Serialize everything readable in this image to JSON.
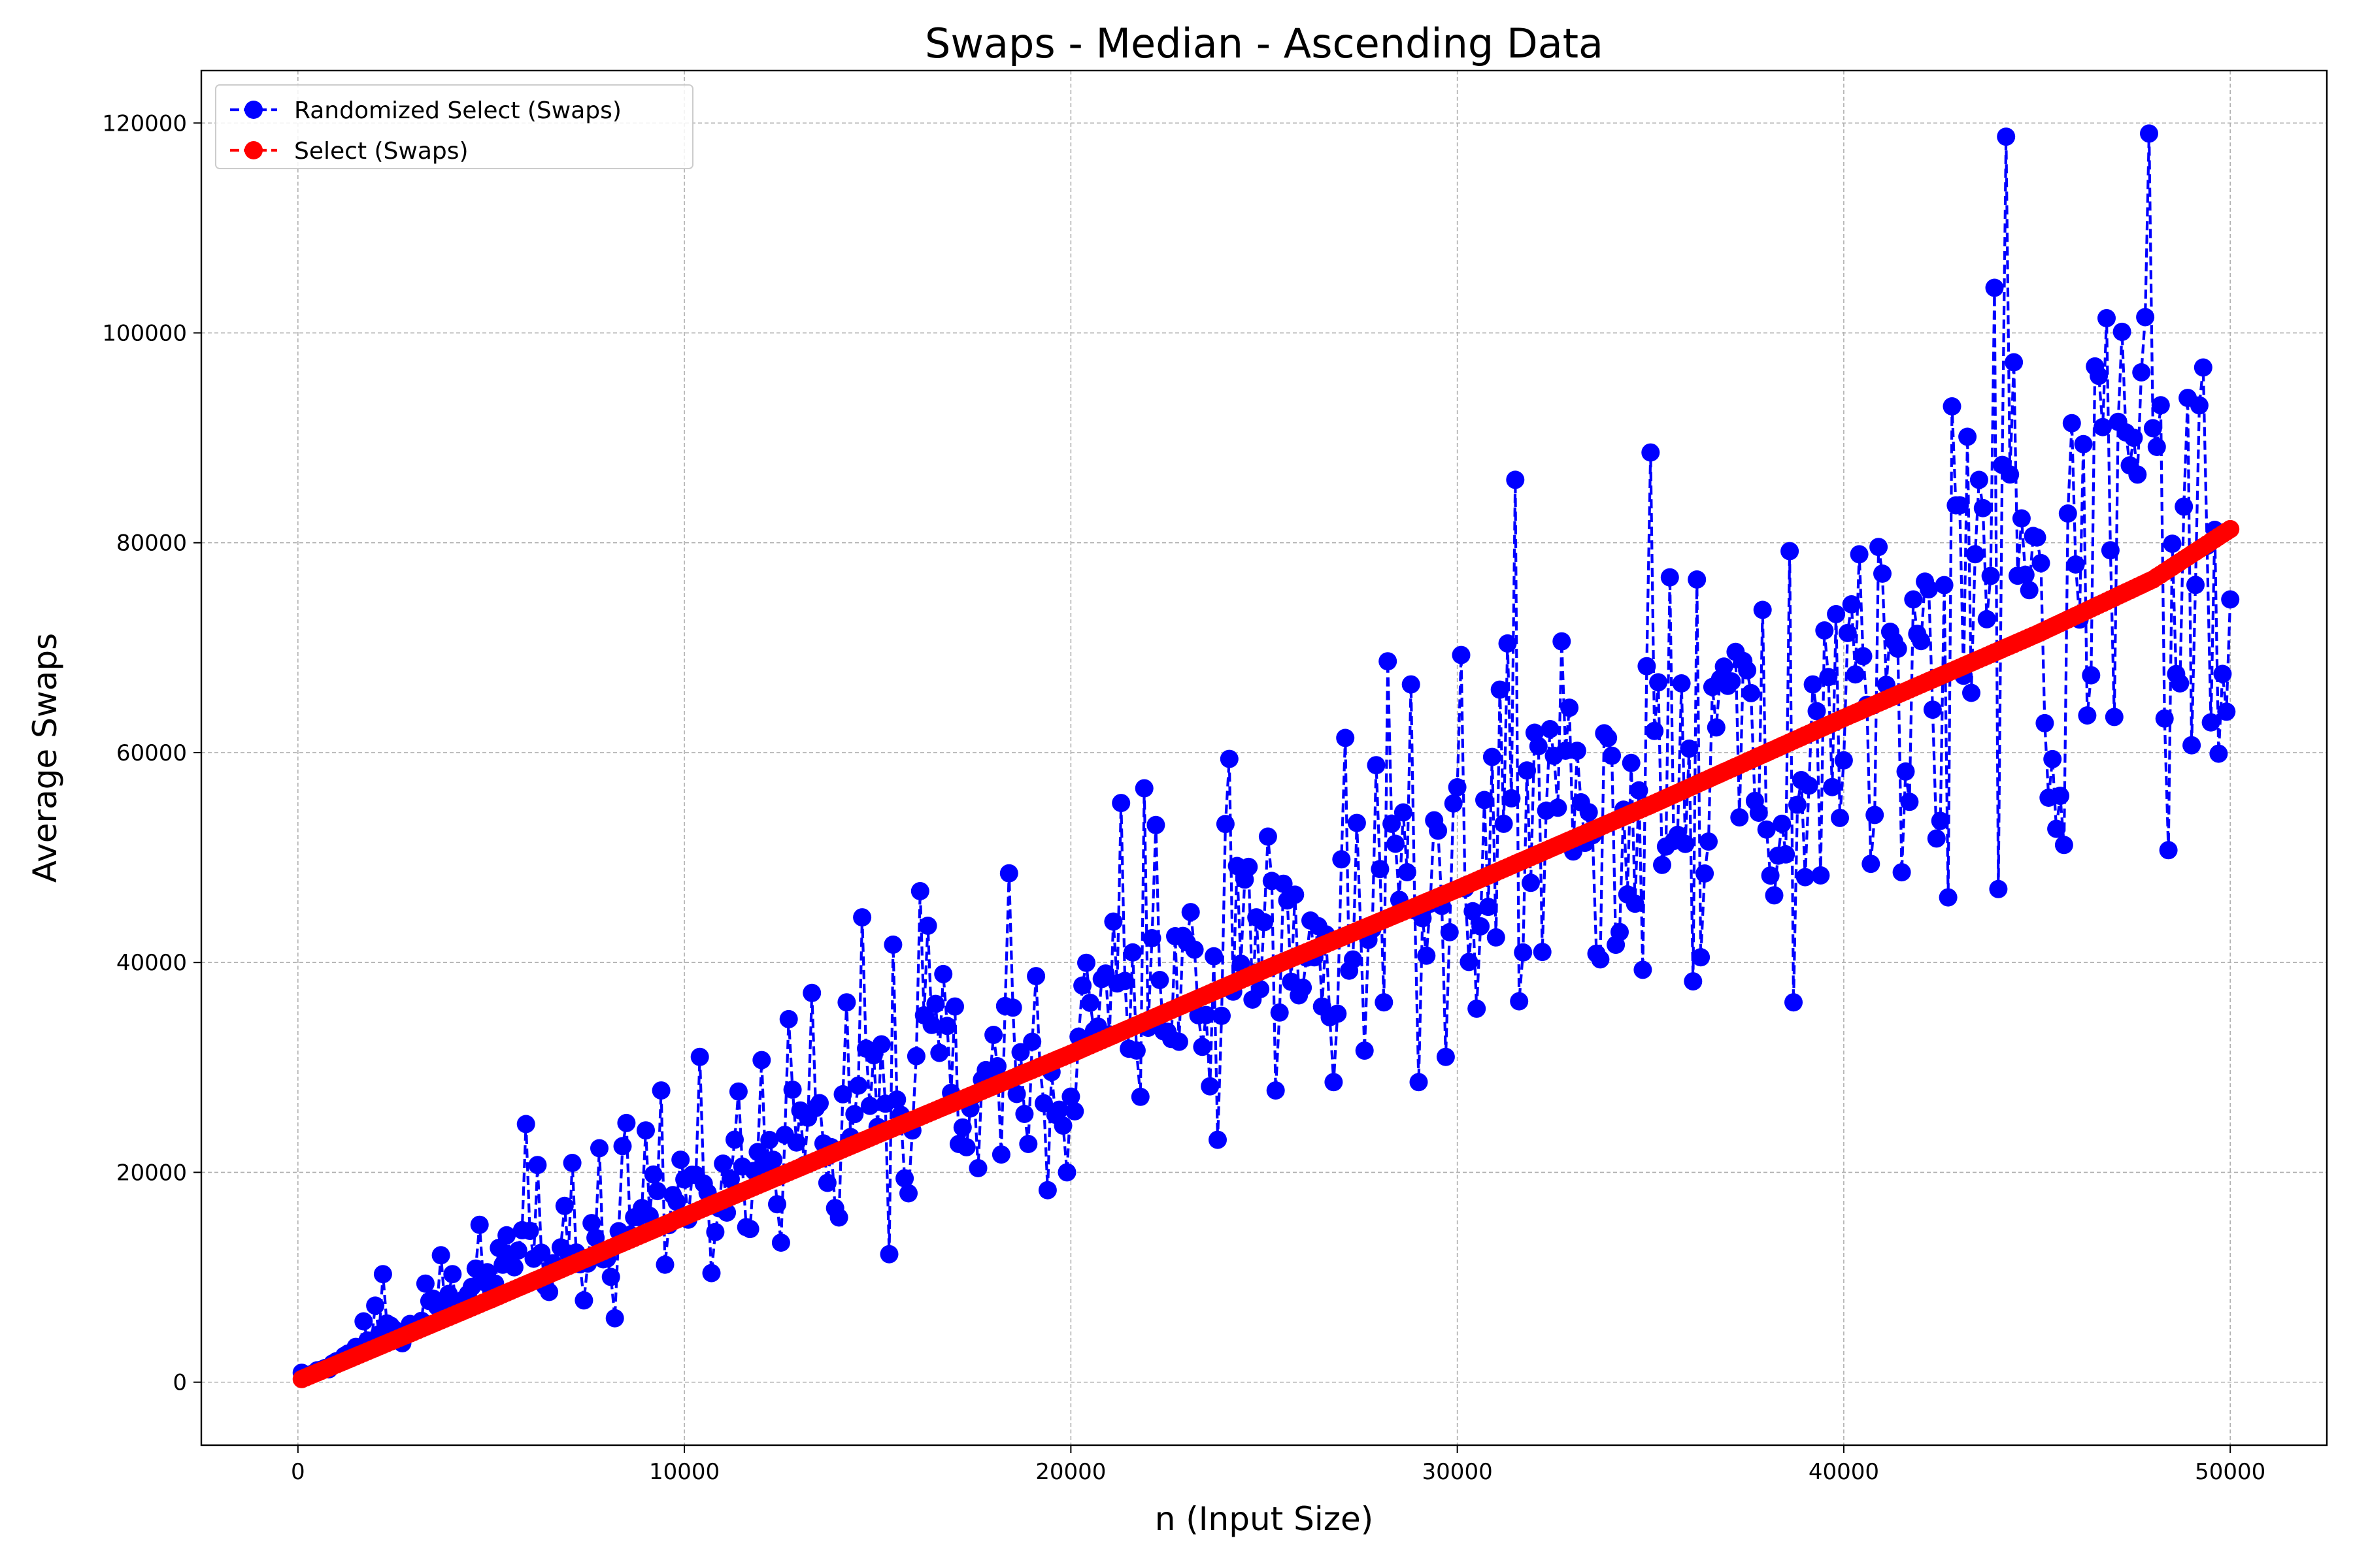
{
  "chart_data": {
    "type": "line",
    "title": "Swaps - Median - Ascending Data",
    "xlabel": "n (Input Size)",
    "ylabel": "Average Swaps",
    "xlim": [
      -2500,
      52500
    ],
    "ylim": [
      -6000,
      125000
    ],
    "xticks": [
      0,
      10000,
      20000,
      30000,
      40000,
      50000
    ],
    "yticks": [
      0,
      20000,
      40000,
      60000,
      80000,
      100000,
      120000
    ],
    "grid": true,
    "legend_position": "top-left",
    "series": [
      {
        "name": "Randomized Select (Swaps)",
        "color": "#0000ff",
        "line_style": "dashed",
        "marker": "circle",
        "points": [
          [
            100,
            900
          ],
          [
            1000,
            2000
          ],
          [
            1700,
            5800
          ],
          [
            2000,
            7300
          ],
          [
            2200,
            10300
          ],
          [
            2600,
            4000
          ],
          [
            3300,
            9400
          ],
          [
            3700,
            12100
          ],
          [
            4000,
            10300
          ],
          [
            4700,
            15000
          ],
          [
            5200,
            12800
          ],
          [
            5400,
            14000
          ],
          [
            5900,
            24600
          ],
          [
            6200,
            20700
          ],
          [
            6500,
            8600
          ],
          [
            6900,
            16800
          ],
          [
            7100,
            20900
          ],
          [
            7400,
            7800
          ],
          [
            7800,
            22300
          ],
          [
            8200,
            6100
          ],
          [
            8400,
            22500
          ],
          [
            8500,
            24700
          ],
          [
            9000,
            24000
          ],
          [
            9400,
            27800
          ],
          [
            9500,
            11200
          ],
          [
            9900,
            21200
          ],
          [
            10400,
            31000
          ],
          [
            10700,
            10400
          ],
          [
            11400,
            27700
          ],
          [
            11700,
            14600
          ],
          [
            12000,
            30700
          ],
          [
            12500,
            13300
          ],
          [
            12700,
            34600
          ],
          [
            13000,
            25900
          ],
          [
            13300,
            37100
          ],
          [
            13700,
            19000
          ],
          [
            14000,
            15700
          ],
          [
            14200,
            36200
          ],
          [
            14600,
            44300
          ],
          [
            15100,
            32200
          ],
          [
            15300,
            12200
          ],
          [
            15400,
            41700
          ],
          [
            15800,
            18000
          ],
          [
            16100,
            46800
          ],
          [
            16300,
            43500
          ],
          [
            16700,
            38900
          ],
          [
            17000,
            35800
          ],
          [
            17300,
            22400
          ],
          [
            17600,
            20400
          ],
          [
            18000,
            33100
          ],
          [
            18200,
            21700
          ],
          [
            18400,
            48500
          ],
          [
            18900,
            22700
          ],
          [
            19100,
            38700
          ],
          [
            19400,
            18300
          ],
          [
            19900,
            20000
          ],
          [
            20300,
            37800
          ],
          [
            20700,
            33900
          ],
          [
            21100,
            43900
          ],
          [
            21300,
            55200
          ],
          [
            21800,
            27200
          ],
          [
            21900,
            56600
          ],
          [
            22200,
            53100
          ],
          [
            22700,
            42500
          ],
          [
            23100,
            44800
          ],
          [
            23600,
            28200
          ],
          [
            23800,
            23100
          ],
          [
            24000,
            53200
          ],
          [
            24100,
            59400
          ],
          [
            24500,
            47900
          ],
          [
            24800,
            44300
          ],
          [
            25100,
            52000
          ],
          [
            25300,
            27800
          ],
          [
            25500,
            47500
          ],
          [
            26000,
            37600
          ],
          [
            26500,
            35800
          ],
          [
            26800,
            28600
          ],
          [
            27100,
            61400
          ],
          [
            27400,
            53300
          ],
          [
            27600,
            31600
          ],
          [
            27900,
            58800
          ],
          [
            28100,
            36200
          ],
          [
            28200,
            68700
          ],
          [
            28600,
            54300
          ],
          [
            28800,
            66500
          ],
          [
            29000,
            28600
          ],
          [
            29300,
            45600
          ],
          [
            29700,
            31000
          ],
          [
            30000,
            56700
          ],
          [
            30100,
            69300
          ],
          [
            30500,
            35600
          ],
          [
            30800,
            45300
          ],
          [
            31100,
            66000
          ],
          [
            31300,
            70400
          ],
          [
            31500,
            86000
          ],
          [
            31600,
            36300
          ],
          [
            32000,
            61900
          ],
          [
            32200,
            41000
          ],
          [
            32700,
            70600
          ],
          [
            33300,
            51400
          ],
          [
            33700,
            40300
          ],
          [
            33900,
            61400
          ],
          [
            34200,
            42900
          ],
          [
            34600,
            45600
          ],
          [
            34800,
            39300
          ],
          [
            35000,
            88600
          ],
          [
            35300,
            49300
          ],
          [
            35500,
            76700
          ],
          [
            35900,
            51300
          ],
          [
            36100,
            38200
          ],
          [
            36200,
            76500
          ],
          [
            36300,
            40500
          ],
          [
            36700,
            62400
          ],
          [
            36900,
            68200
          ],
          [
            37200,
            69600
          ],
          [
            37700,
            55400
          ],
          [
            37900,
            73600
          ],
          [
            38200,
            46400
          ],
          [
            38500,
            50300
          ],
          [
            38600,
            79200
          ],
          [
            38700,
            36200
          ],
          [
            39200,
            66500
          ],
          [
            39400,
            48300
          ],
          [
            39600,
            67200
          ],
          [
            39800,
            73200
          ],
          [
            40100,
            71400
          ],
          [
            40400,
            78900
          ],
          [
            40700,
            49400
          ],
          [
            40900,
            79600
          ],
          [
            41400,
            69900
          ],
          [
            41500,
            48600
          ],
          [
            41800,
            74600
          ],
          [
            42100,
            76300
          ],
          [
            42500,
            53500
          ],
          [
            42700,
            46200
          ],
          [
            42800,
            93000
          ],
          [
            43200,
            90100
          ],
          [
            43600,
            83300
          ],
          [
            43900,
            104300
          ],
          [
            44000,
            47000
          ],
          [
            44200,
            118700
          ],
          [
            44400,
            97200
          ],
          [
            45000,
            80500
          ],
          [
            45300,
            55700
          ],
          [
            45700,
            51200
          ],
          [
            45900,
            91400
          ],
          [
            46200,
            89400
          ],
          [
            46500,
            96800
          ],
          [
            46800,
            101400
          ],
          [
            47000,
            63400
          ],
          [
            47200,
            100100
          ],
          [
            47600,
            86500
          ],
          [
            47800,
            101500
          ],
          [
            47900,
            119000
          ],
          [
            48200,
            93100
          ],
          [
            48400,
            50700
          ],
          [
            48700,
            66600
          ],
          [
            48900,
            93800
          ],
          [
            49000,
            60700
          ],
          [
            49300,
            96700
          ],
          [
            49700,
            59900
          ],
          [
            49800,
            67500
          ],
          [
            50000,
            74600
          ]
        ]
      },
      {
        "name": "Select (Swaps)",
        "color": "#ff0000",
        "line_style": "dashed",
        "marker": "circle",
        "points": [
          [
            100,
            300
          ],
          [
            5000,
            7900
          ],
          [
            10000,
            15800
          ],
          [
            15000,
            23600
          ],
          [
            20000,
            31300
          ],
          [
            25000,
            39300
          ],
          [
            30000,
            47000
          ],
          [
            35000,
            55000
          ],
          [
            40000,
            63300
          ],
          [
            45000,
            71300
          ],
          [
            48000,
            76500
          ],
          [
            50000,
            81300
          ]
        ]
      }
    ]
  }
}
